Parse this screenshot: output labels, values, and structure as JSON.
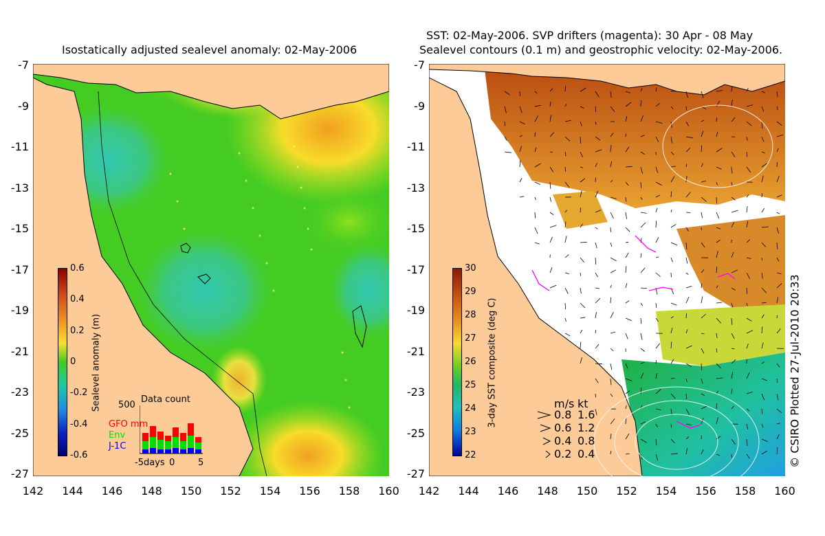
{
  "left_panel": {
    "title": "Isostatically adjusted sealevel anomaly: 02-May-2006",
    "lat_ticks": [
      "-7",
      "-9",
      "-11",
      "-13",
      "-15",
      "-17",
      "-19",
      "-21",
      "-23",
      "-25",
      "-27"
    ],
    "lon_ticks": [
      "142",
      "144",
      "146",
      "148",
      "150",
      "152",
      "154",
      "156",
      "158",
      "160"
    ],
    "colorbar": {
      "label": "Sealevel anomaly (m)",
      "ticks": [
        "0.6",
        "0.4",
        "0.2",
        "0",
        "-0.2",
        "-0.4",
        "-0.6"
      ],
      "range": [
        -0.6,
        0.6
      ]
    },
    "data_count": {
      "title": "Data count",
      "max_label": "500",
      "legend": [
        {
          "label": "GFO mm",
          "color": "#ff0000"
        },
        {
          "label": "Env",
          "color": "#00dd00"
        },
        {
          "label": "J-1C",
          "color": "#0000ff"
        }
      ],
      "x_label": "-5days",
      "x_mid": "0",
      "x_end": "5"
    }
  },
  "right_panel": {
    "title_line1": "SST: 02-May-2006. SVP drifters (magenta): 30 Apr - 08 May",
    "title_line2": "Sealevel contours (0.1 m) and geostrophic velocity: 02-May-2006.",
    "lat_ticks": [
      "-7",
      "-9",
      "-11",
      "-13",
      "-15",
      "-17",
      "-19",
      "-21",
      "-23",
      "-25",
      "-27"
    ],
    "lon_ticks": [
      "142",
      "144",
      "146",
      "148",
      "150",
      "152",
      "154",
      "156",
      "158",
      "160"
    ],
    "colorbar": {
      "label": "3-day SST composite (deg C)",
      "ticks": [
        "30",
        "29",
        "28",
        "27",
        "26",
        "25",
        "24",
        "23",
        "22"
      ],
      "range": [
        22,
        30
      ]
    },
    "velocity_legend": {
      "header_ms": "m/s",
      "header_kt": "kt",
      "rows": [
        {
          "ms": "0.8",
          "kt": "1.6"
        },
        {
          "ms": "0.6",
          "kt": "1.2"
        },
        {
          "ms": "0.4",
          "kt": "0.8"
        },
        {
          "ms": "0.2",
          "kt": "0.4"
        }
      ]
    },
    "credit": "© CSIRO Plotted 27-Jul-2010 20:33"
  },
  "colors": {
    "land": "#fccb98",
    "cloud": "#ffffff",
    "anomaly_base": "#44cc22",
    "sst_warm": "#c8641e"
  }
}
